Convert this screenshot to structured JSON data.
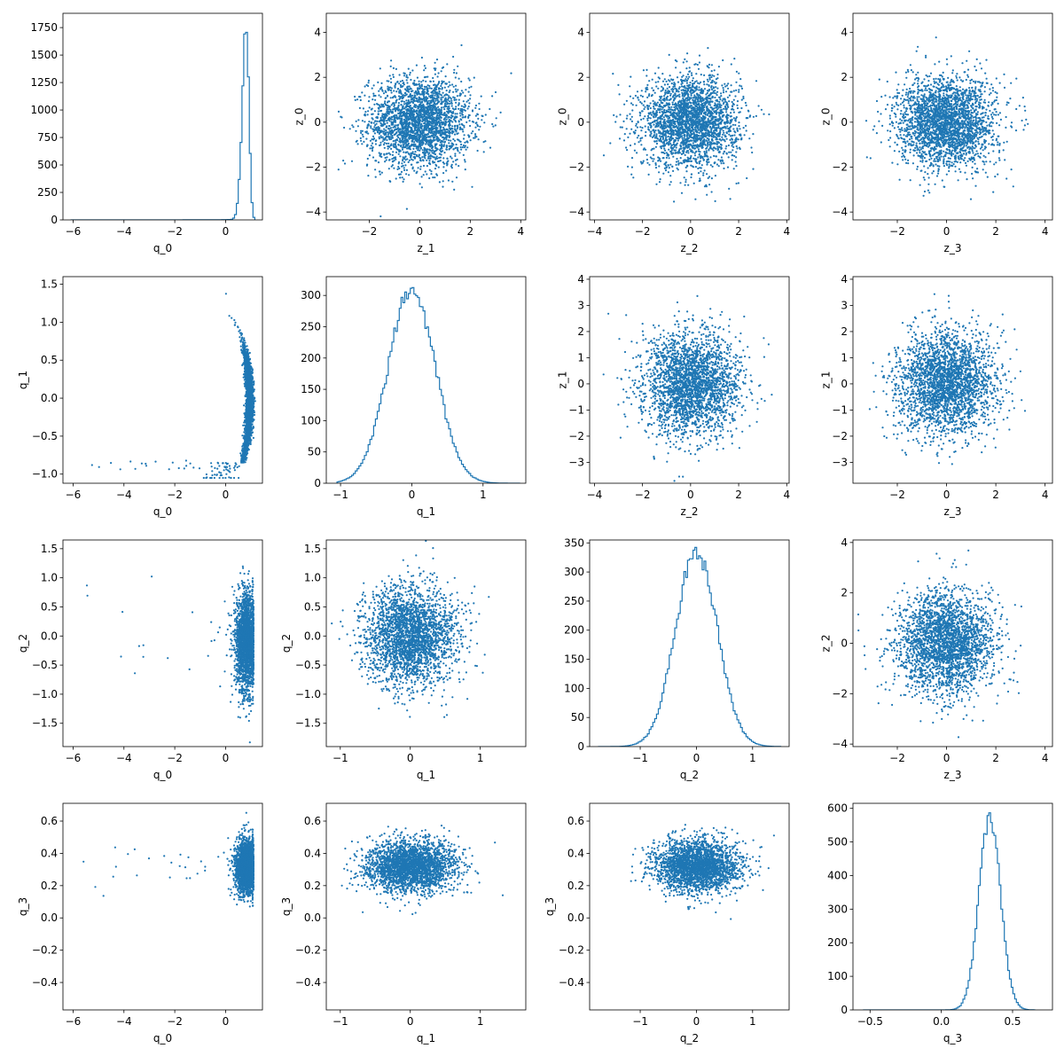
{
  "figure": {
    "background": "#ffffff",
    "series_color": "#1f77b4"
  },
  "chart_data": [
    {
      "type": "histogram",
      "name": "hist-q0",
      "row": 0,
      "col": 0,
      "xlabel": "q_0",
      "ylabel": "",
      "xlim": [
        -6.4,
        1.45
      ],
      "ylim": [
        0,
        1880
      ],
      "xticks": [
        -6,
        -4,
        -2,
        0
      ],
      "yticks": [
        0,
        250,
        500,
        750,
        1000,
        1250,
        1500,
        1750
      ],
      "dist": {
        "type": "skew_left",
        "center": 0.82,
        "min": -6.1,
        "max": 1.15,
        "peak": 1780
      }
    },
    {
      "type": "scatter",
      "name": "scatter-z1-z0",
      "row": 0,
      "col": 1,
      "xlabel": "z_1",
      "ylabel": "z_0",
      "xlim": [
        -3.7,
        4.2
      ],
      "ylim": [
        -4.35,
        4.85
      ],
      "xticks": [
        -2,
        0,
        2,
        4
      ],
      "yticks": [
        -4,
        -2,
        0,
        2,
        4
      ],
      "dist": {
        "type": "gauss2d",
        "mx": 0,
        "my": 0,
        "sx": 1,
        "sy": 1
      }
    },
    {
      "type": "scatter",
      "name": "scatter-z2-z0",
      "row": 0,
      "col": 2,
      "xlabel": "z_2",
      "ylabel": "z_0",
      "xlim": [
        -4.2,
        4.1
      ],
      "ylim": [
        -4.35,
        4.85
      ],
      "xticks": [
        -4,
        -2,
        0,
        2,
        4
      ],
      "yticks": [
        -4,
        -2,
        0,
        2,
        4
      ],
      "dist": {
        "type": "gauss2d",
        "mx": 0,
        "my": 0,
        "sx": 1,
        "sy": 1
      }
    },
    {
      "type": "scatter",
      "name": "scatter-z3-z0",
      "row": 0,
      "col": 3,
      "xlabel": "z_3",
      "ylabel": "z_0",
      "xlim": [
        -3.8,
        4.3
      ],
      "ylim": [
        -4.35,
        4.85
      ],
      "xticks": [
        -2,
        0,
        2,
        4
      ],
      "yticks": [
        -4,
        -2,
        0,
        2,
        4
      ],
      "dist": {
        "type": "gauss2d",
        "mx": 0,
        "my": 0,
        "sx": 1,
        "sy": 1
      }
    },
    {
      "type": "scatter",
      "name": "scatter-q0-q1",
      "row": 1,
      "col": 0,
      "xlabel": "q_0",
      "ylabel": "q_1",
      "xlim": [
        -6.4,
        1.45
      ],
      "ylim": [
        -1.12,
        1.6
      ],
      "xticks": [
        -6,
        -4,
        -2,
        0
      ],
      "yticks": [
        -1.0,
        -0.5,
        0.0,
        0.5,
        1.0,
        1.5
      ],
      "dist": {
        "type": "crescent",
        "tail_min": -6.1
      }
    },
    {
      "type": "histogram",
      "name": "hist-q1",
      "row": 1,
      "col": 1,
      "xlabel": "q_1",
      "ylabel": "",
      "xlim": [
        -1.2,
        1.6
      ],
      "ylim": [
        0,
        330
      ],
      "xticks": [
        -1,
        0,
        1
      ],
      "yticks": [
        0,
        50,
        100,
        150,
        200,
        250,
        300
      ],
      "dist": {
        "type": "normal",
        "center": 0,
        "sigma": 0.33,
        "min": -1.05,
        "max": 1.52,
        "peak": 310
      }
    },
    {
      "type": "scatter",
      "name": "scatter-z2-z1",
      "row": 1,
      "col": 2,
      "xlabel": "z_2",
      "ylabel": "z_1",
      "xlim": [
        -4.2,
        4.1
      ],
      "ylim": [
        -3.8,
        4.1
      ],
      "xticks": [
        -4,
        -2,
        0,
        2,
        4
      ],
      "yticks": [
        -3,
        -2,
        -1,
        0,
        1,
        2,
        3,
        4
      ],
      "dist": {
        "type": "gauss2d",
        "mx": 0,
        "my": 0,
        "sx": 1,
        "sy": 1
      }
    },
    {
      "type": "scatter",
      "name": "scatter-z3-z1",
      "row": 1,
      "col": 3,
      "xlabel": "z_3",
      "ylabel": "z_1",
      "xlim": [
        -3.8,
        4.3
      ],
      "ylim": [
        -3.8,
        4.1
      ],
      "xticks": [
        -2,
        0,
        2,
        4
      ],
      "yticks": [
        -3,
        -2,
        -1,
        0,
        1,
        2,
        3,
        4
      ],
      "dist": {
        "type": "gauss2d",
        "mx": 0,
        "my": 0,
        "sx": 1,
        "sy": 1
      }
    },
    {
      "type": "scatter",
      "name": "scatter-q0-q2",
      "row": 2,
      "col": 0,
      "xlabel": "q_0",
      "ylabel": "q_2",
      "xlim": [
        -6.4,
        1.45
      ],
      "ylim": [
        -1.9,
        1.65
      ],
      "xticks": [
        -6,
        -4,
        -2,
        0
      ],
      "yticks": [
        -1.5,
        -1.0,
        -0.5,
        0.0,
        0.5,
        1.0,
        1.5
      ],
      "dist": {
        "type": "band_q0",
        "sy": 0.42,
        "my": -0.1
      }
    },
    {
      "type": "scatter",
      "name": "scatter-q1-q2",
      "row": 2,
      "col": 1,
      "xlabel": "q_1",
      "ylabel": "q_2",
      "xlim": [
        -1.2,
        1.65
      ],
      "ylim": [
        -1.9,
        1.65
      ],
      "xticks": [
        -1,
        0,
        1
      ],
      "yticks": [
        -1.5,
        -1.0,
        -0.5,
        0.0,
        0.5,
        1.0,
        1.5
      ],
      "dist": {
        "type": "gauss2d",
        "mx": 0,
        "my": 0,
        "sx": 0.33,
        "sy": 0.42
      }
    },
    {
      "type": "histogram",
      "name": "hist-q2",
      "row": 2,
      "col": 2,
      "xlabel": "q_2",
      "ylabel": "",
      "xlim": [
        -1.9,
        1.65
      ],
      "ylim": [
        0,
        355
      ],
      "xticks": [
        -1,
        0,
        1
      ],
      "yticks": [
        0,
        50,
        100,
        150,
        200,
        250,
        300,
        350
      ],
      "dist": {
        "type": "normal",
        "center": 0,
        "sigma": 0.37,
        "min": -1.75,
        "max": 1.5,
        "peak": 335
      }
    },
    {
      "type": "scatter",
      "name": "scatter-z3-z2",
      "row": 2,
      "col": 3,
      "xlabel": "z_3",
      "ylabel": "z_2",
      "xlim": [
        -3.8,
        4.3
      ],
      "ylim": [
        -4.1,
        4.1
      ],
      "xticks": [
        -2,
        0,
        2,
        4
      ],
      "yticks": [
        -4,
        -2,
        0,
        2,
        4
      ],
      "dist": {
        "type": "gauss2d",
        "mx": 0,
        "my": 0,
        "sx": 1,
        "sy": 1
      }
    },
    {
      "type": "scatter",
      "name": "scatter-q0-q3",
      "row": 3,
      "col": 0,
      "xlabel": "q_0",
      "ylabel": "q_3",
      "xlim": [
        -6.4,
        1.45
      ],
      "ylim": [
        -0.57,
        0.71
      ],
      "xticks": [
        -6,
        -4,
        -2,
        0
      ],
      "yticks": [
        -0.4,
        -0.2,
        0.0,
        0.2,
        0.4,
        0.6
      ],
      "dist": {
        "type": "band_q0",
        "sy": 0.08,
        "my": 0.32
      }
    },
    {
      "type": "scatter",
      "name": "scatter-q1-q3",
      "row": 3,
      "col": 1,
      "xlabel": "q_1",
      "ylabel": "q_3",
      "xlim": [
        -1.2,
        1.65
      ],
      "ylim": [
        -0.57,
        0.71
      ],
      "xticks": [
        -1,
        0,
        1
      ],
      "yticks": [
        -0.4,
        -0.2,
        0.0,
        0.2,
        0.4,
        0.6
      ],
      "dist": {
        "type": "gauss2d",
        "mx": 0,
        "my": 0.32,
        "sx": 0.33,
        "sy": 0.08
      }
    },
    {
      "type": "scatter",
      "name": "scatter-q2-q3",
      "row": 3,
      "col": 2,
      "xlabel": "q_2",
      "ylabel": "q_3",
      "xlim": [
        -1.9,
        1.65
      ],
      "ylim": [
        -0.57,
        0.71
      ],
      "xticks": [
        -1,
        0,
        1
      ],
      "yticks": [
        -0.4,
        -0.2,
        0.0,
        0.2,
        0.4,
        0.6
      ],
      "dist": {
        "type": "gauss2d",
        "mx": 0,
        "my": 0.32,
        "sx": 0.37,
        "sy": 0.08
      }
    },
    {
      "type": "histogram",
      "name": "hist-q3",
      "row": 3,
      "col": 3,
      "xlabel": "q_3",
      "ylabel": "",
      "xlim": [
        -0.62,
        0.78
      ],
      "ylim": [
        0,
        615
      ],
      "xticks": [
        -0.5,
        0.0,
        0.5
      ],
      "yticks": [
        0,
        100,
        200,
        300,
        400,
        500,
        600
      ],
      "dist": {
        "type": "normal",
        "center": 0.34,
        "sigma": 0.075,
        "min": -0.55,
        "max": 0.66,
        "peak": 580
      }
    }
  ]
}
